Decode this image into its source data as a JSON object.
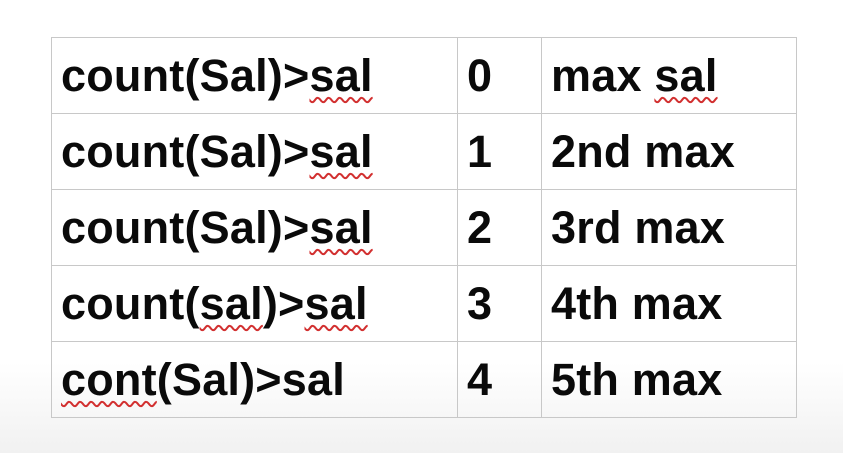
{
  "table": {
    "rows": [
      {
        "expr": [
          {
            "text": "count(Sal)>",
            "flag": false
          },
          {
            "text": "sal",
            "flag": true
          }
        ],
        "n": "0",
        "label": [
          {
            "text": "max ",
            "flag": false
          },
          {
            "text": "sal",
            "flag": true
          }
        ]
      },
      {
        "expr": [
          {
            "text": "count(Sal)>",
            "flag": false
          },
          {
            "text": "sal",
            "flag": true
          }
        ],
        "n": "1",
        "label": [
          {
            "text": "2nd max",
            "flag": false
          }
        ]
      },
      {
        "expr": [
          {
            "text": "count(Sal)>",
            "flag": false
          },
          {
            "text": "sal",
            "flag": true
          }
        ],
        "n": "2",
        "label": [
          {
            "text": "3rd max",
            "flag": false
          }
        ]
      },
      {
        "expr": [
          {
            "text": "count(",
            "flag": false
          },
          {
            "text": "sal",
            "flag": true
          },
          {
            "text": ")>",
            "flag": false
          },
          {
            "text": "sal",
            "flag": true
          }
        ],
        "n": "3",
        "label": [
          {
            "text": "4th max",
            "flag": false
          }
        ]
      },
      {
        "expr": [
          {
            "text": "cont",
            "flag": true
          },
          {
            "text": "(Sal)>",
            "flag": false
          },
          {
            "text": "sal",
            "flag": false
          }
        ],
        "n": "4",
        "label": [
          {
            "text": "5th max",
            "flag": false
          }
        ]
      }
    ]
  },
  "colors": {
    "text": "#0a0a0a",
    "grid_border": "#c8c8c8",
    "spellcheck_underline": "#d23030"
  }
}
